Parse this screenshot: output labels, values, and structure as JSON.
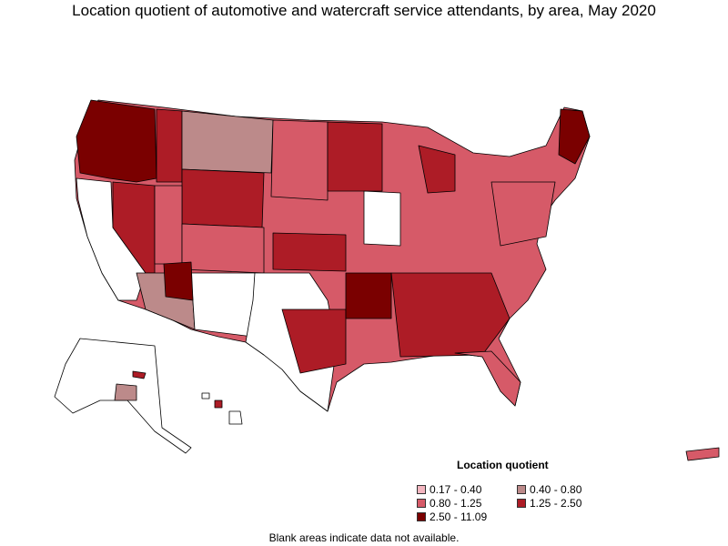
{
  "title": "Location quotient of automotive and watercraft service attendants, by area, May 2020",
  "legend": {
    "title": "Location quotient",
    "items": [
      {
        "label": "0.17 - 0.40",
        "color": "#f4b6c0"
      },
      {
        "label": "0.40 - 0.80",
        "color": "#bc8a8a"
      },
      {
        "label": "0.80 - 1.25",
        "color": "#d65a68"
      },
      {
        "label": "1.25 - 2.50",
        "color": "#ad1c26"
      },
      {
        "label": "2.50 - 11.09",
        "color": "#7a0000"
      }
    ]
  },
  "footnote": "Blank areas indicate data not available.",
  "colors": {
    "border": "#000000",
    "no_data": "#ffffff"
  }
}
